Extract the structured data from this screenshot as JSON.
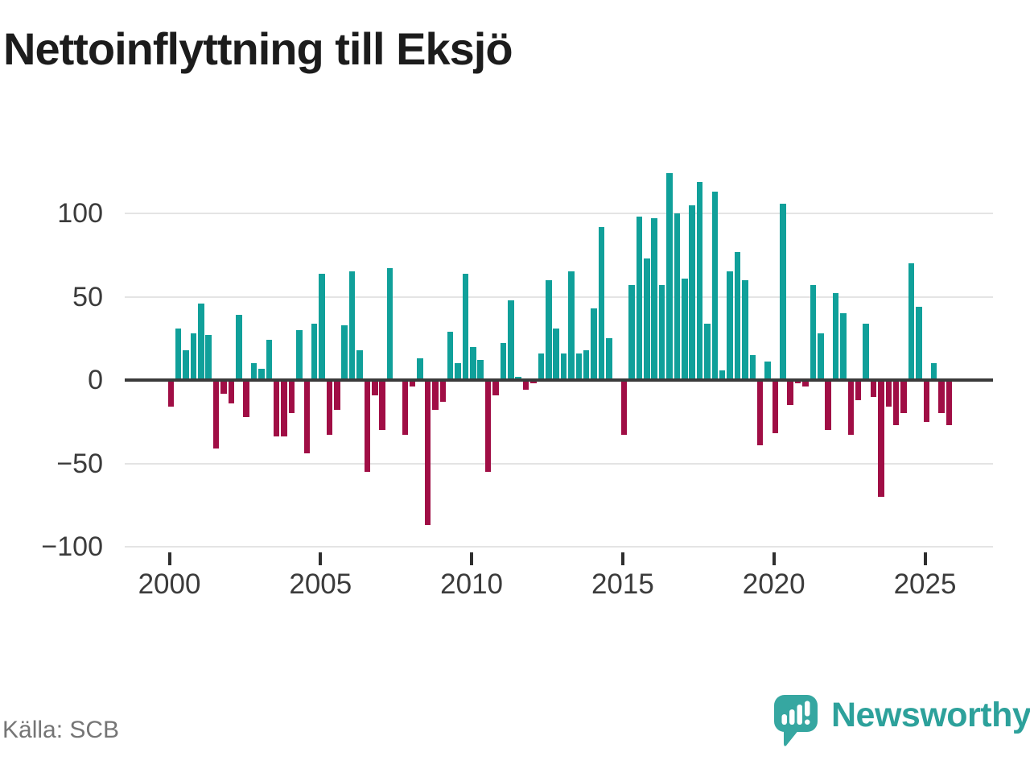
{
  "title": "Nettoinflyttning till Eksjö",
  "source": "Källa: SCB",
  "branding": {
    "name": "Newsworthy"
  },
  "colors": {
    "positive": "#10a09a",
    "negative": "#a00e45",
    "grid": "#e4e4e4",
    "axis": "#3a3a3a",
    "logo": "#36a7a1",
    "logo_text": "#2da19b",
    "tick_text": "#3b3b3b",
    "source_text": "#757575"
  },
  "chart_data": {
    "type": "bar",
    "title": "Nettoinflyttning till Eksjö",
    "xlabel": "",
    "ylabel": "",
    "frequency": "quarterly",
    "start_year": 2000,
    "ylim": [
      -103,
      127
    ],
    "grid": true,
    "y_tick_values": [
      100,
      50,
      0,
      -50,
      -100
    ],
    "y_tick_labels": [
      "100",
      "50",
      "0",
      "−50",
      "−100"
    ],
    "x_tick_years": [
      2000,
      2005,
      2010,
      2015,
      2020,
      2025
    ],
    "x_tick_labels": [
      "2000",
      "2005",
      "2010",
      "2015",
      "2020",
      "2025"
    ],
    "values": [
      -16,
      31,
      18,
      28,
      46,
      27,
      -41,
      -8,
      -14,
      39,
      -22,
      10,
      7,
      24,
      -34,
      -34,
      -20,
      30,
      -44,
      34,
      64,
      -33,
      -18,
      33,
      65,
      18,
      -55,
      -9,
      -30,
      67,
      0,
      -33,
      -4,
      13,
      -87,
      -18,
      -13,
      29,
      10,
      64,
      20,
      12,
      -55,
      -9,
      22,
      48,
      2,
      -6,
      -2,
      16,
      60,
      31,
      16,
      65,
      16,
      18,
      43,
      92,
      25,
      0,
      -33,
      57,
      98,
      73,
      97,
      57,
      124,
      100,
      61,
      105,
      119,
      34,
      113,
      6,
      65,
      77,
      60,
      15,
      -39,
      11,
      -32,
      106,
      -15,
      -2,
      -4,
      57,
      28,
      -30,
      52,
      40,
      -33,
      -12,
      34,
      -10,
      -70,
      -16,
      -27,
      -20,
      70,
      44,
      -25,
      10,
      -20,
      -27
    ]
  }
}
